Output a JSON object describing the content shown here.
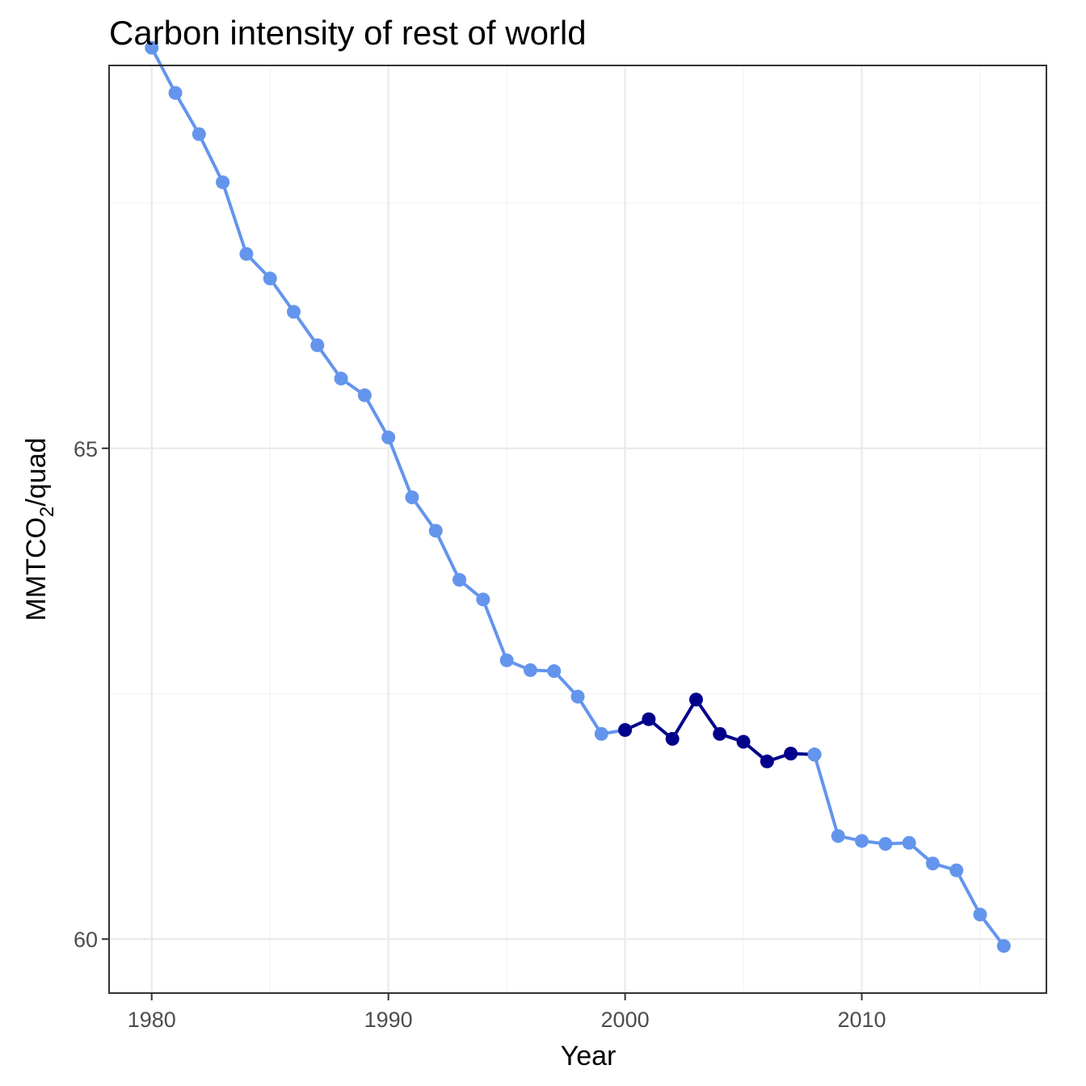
{
  "chart_data": {
    "type": "line",
    "title": "Carbon intensity of rest of world",
    "xlabel": "Year",
    "ylabel": {
      "main": "MMTCO",
      "sub": "2",
      "rest": "/quad"
    },
    "xlim": [
      1978.2,
      2017.8
    ],
    "ylim": [
      59.45,
      68.9
    ],
    "x_ticks": [
      1980,
      1990,
      2000,
      2010
    ],
    "y_ticks": [
      60,
      65
    ],
    "grid": true,
    "legend": "none",
    "colors": {
      "base": "#6495ed",
      "highlight": "#00008b"
    },
    "series": [
      {
        "x": [
          1980,
          1981,
          1982,
          1983,
          1984,
          1985,
          1986,
          1987,
          1988,
          1989,
          1990,
          1991,
          1992,
          1993,
          1994,
          1995,
          1996,
          1997,
          1998,
          1999,
          2000
        ],
        "y": [
          69.08,
          68.62,
          68.2,
          67.71,
          66.98,
          66.73,
          66.39,
          66.05,
          65.71,
          65.54,
          65.11,
          64.5,
          64.16,
          63.66,
          63.46,
          62.84,
          62.74,
          62.73,
          62.47,
          62.09,
          62.13
        ],
        "color": "#6495ed"
      },
      {
        "x": [
          2000,
          2001,
          2002,
          2003,
          2004,
          2005,
          2006,
          2007,
          2008
        ],
        "y": [
          62.13,
          62.24,
          62.04,
          62.44,
          62.09,
          62.01,
          61.81,
          61.89,
          61.88
        ],
        "color": "#00008b"
      },
      {
        "x": [
          2008,
          2009,
          2010,
          2011,
          2012,
          2013,
          2014,
          2015,
          2016
        ],
        "y": [
          61.88,
          61.05,
          61.0,
          60.97,
          60.98,
          60.77,
          60.7,
          60.25,
          59.93
        ],
        "color": "#6495ed"
      }
    ]
  }
}
